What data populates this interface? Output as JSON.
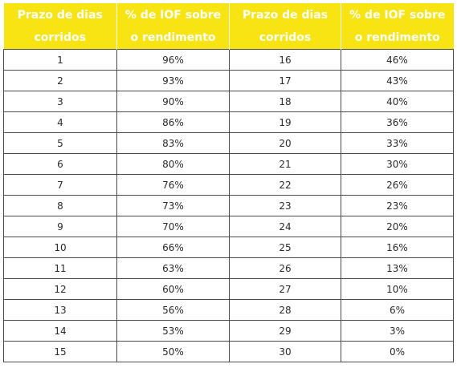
{
  "headers": [
    "Prazo de dias corridos",
    "% de IOF sobre o rendimento",
    "Prazo de dias corridos",
    "% de IOF sobre o rendimento"
  ],
  "rows": [
    [
      "1",
      "96%",
      "16",
      "46%"
    ],
    [
      "2",
      "93%",
      "17",
      "43%"
    ],
    [
      "3",
      "90%",
      "18",
      "40%"
    ],
    [
      "4",
      "86%",
      "19",
      "36%"
    ],
    [
      "5",
      "83%",
      "20",
      "33%"
    ],
    [
      "6",
      "80%",
      "21",
      "30%"
    ],
    [
      "7",
      "76%",
      "22",
      "26%"
    ],
    [
      "8",
      "73%",
      "23",
      "23%"
    ],
    [
      "9",
      "70%",
      "24",
      "20%"
    ],
    [
      "10",
      "66%",
      "25",
      "16%"
    ],
    [
      "11",
      "63%",
      "26",
      "13%"
    ],
    [
      "12",
      "60%",
      "27",
      "10%"
    ],
    [
      "13",
      "56%",
      "28",
      "6%"
    ],
    [
      "14",
      "53%",
      "29",
      "3%"
    ],
    [
      "15",
      "50%",
      "30",
      "0%"
    ]
  ],
  "colors": {
    "header_bg": "#f9e413",
    "header_text": "#ffffff",
    "border": "#4a4a4a"
  }
}
